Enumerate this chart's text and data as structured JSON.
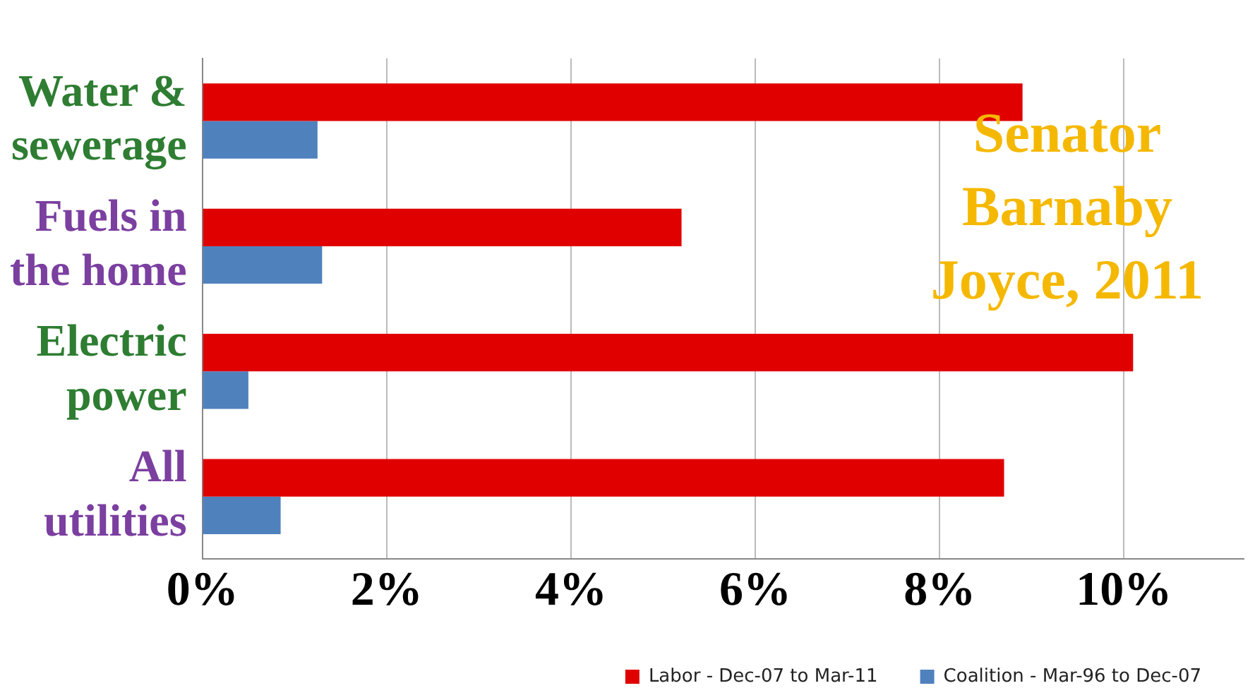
{
  "chart_data": {
    "type": "bar",
    "orientation": "horizontal",
    "categories": [
      "Water & sewerage",
      "Fuels in the home",
      "Electric power",
      "All utilities"
    ],
    "series": [
      {
        "name": "Labor - Dec-07 to Mar-11",
        "color": "#e00000",
        "values": [
          8.9,
          5.2,
          10.1,
          8.7
        ]
      },
      {
        "name": "Coalition - Mar-96 to Dec-07",
        "color": "#4f81bd",
        "values": [
          1.25,
          1.3,
          0.5,
          0.85
        ]
      }
    ],
    "xlim": [
      0,
      11.3
    ],
    "xticks": [
      {
        "value": 0,
        "label": "0%"
      },
      {
        "value": 2,
        "label": "2%"
      },
      {
        "value": 4,
        "label": "4%"
      },
      {
        "value": 6,
        "label": "6%"
      },
      {
        "value": 8,
        "label": "8%"
      },
      {
        "value": 10,
        "label": "10%"
      }
    ],
    "grid": "x",
    "legend": "bottom right",
    "annotations": [
      "Senator Barnaby Joyce, 2011"
    ]
  }
}
